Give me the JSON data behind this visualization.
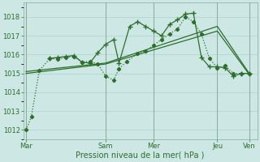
{
  "bg_color": "#cde8e4",
  "grid_color": "#b0d8d0",
  "line_color": "#2d6e2d",
  "xlabel": "Pression niveau de la mer( hPa )",
  "ylim": [
    1011.5,
    1018.75
  ],
  "xlim": [
    -2,
    174
  ],
  "yticks": [
    1012,
    1013,
    1014,
    1015,
    1016,
    1017,
    1018
  ],
  "day_labels": [
    "Mar",
    "Sam",
    "Mer",
    "Jeu",
    "Ven"
  ],
  "day_positions": [
    0,
    60,
    96,
    144,
    168
  ],
  "series1_x": [
    0,
    4,
    10,
    18,
    24,
    30,
    36,
    42,
    48,
    54,
    60,
    66,
    70,
    76,
    84,
    90,
    96,
    102,
    108,
    114,
    120,
    126,
    132,
    138,
    144,
    150,
    156,
    162,
    168
  ],
  "series1_y": [
    1012.0,
    1012.7,
    1015.15,
    1015.8,
    1015.75,
    1015.85,
    1015.9,
    1015.6,
    1015.65,
    1015.5,
    1014.85,
    1014.65,
    1015.25,
    1015.65,
    1016.05,
    1016.2,
    1016.5,
    1016.8,
    1017.1,
    1017.35,
    1018.0,
    1017.75,
    1017.1,
    1015.8,
    1015.3,
    1015.4,
    1015.0,
    1015.0,
    1015.0
  ],
  "series2_x": [
    18,
    24,
    30,
    36,
    42,
    48,
    54,
    60,
    66,
    70,
    78,
    84,
    90,
    96,
    102,
    108,
    114,
    120,
    126,
    132,
    138,
    144,
    150,
    156,
    162,
    168
  ],
  "series2_y": [
    1015.8,
    1015.85,
    1015.9,
    1015.95,
    1015.6,
    1015.55,
    1016.1,
    1016.55,
    1016.8,
    1015.55,
    1017.5,
    1017.75,
    1017.5,
    1017.25,
    1017.0,
    1017.6,
    1017.85,
    1018.15,
    1018.2,
    1015.85,
    1015.35,
    1015.35,
    1015.3,
    1014.85,
    1015.0,
    1015.0
  ],
  "series3_x": [
    0,
    60,
    144,
    168
  ],
  "series3_y": [
    1015.1,
    1015.55,
    1017.5,
    1015.0
  ],
  "series4_x": [
    0,
    60,
    144,
    168
  ],
  "series4_y": [
    1015.0,
    1015.5,
    1017.25,
    1014.95
  ]
}
